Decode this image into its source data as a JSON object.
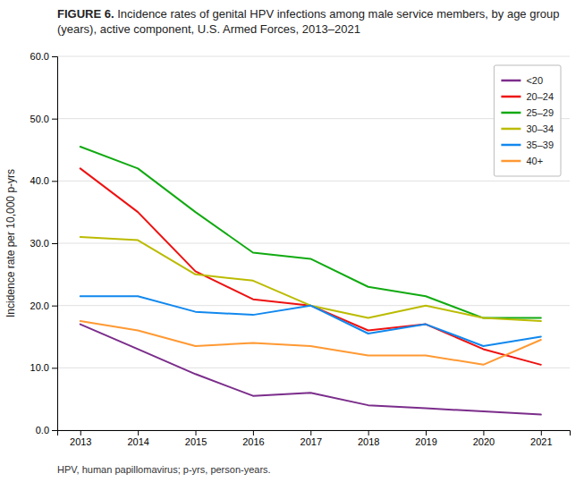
{
  "chart_data": {
    "type": "line",
    "title": "FIGURE 6.",
    "subtitle": "Incidence rates of genital HPV infections among male service members, by age group (years), active component, U.S. Armed Forces, 2013–2021",
    "y_label": "Incidence rate per 10,000 p-yrs",
    "annotations": [
      "HPV, human papillomavirus; p-yrs, person-years."
    ],
    "x": [
      2013,
      2014,
      2015,
      2016,
      2017,
      2018,
      2019,
      2020,
      2021
    ],
    "series": [
      {
        "name": "<20",
        "color": "#7B2D8B",
        "values": [
          17.0,
          13.0,
          9.0,
          5.5,
          6.0,
          4.0,
          3.5,
          3.0,
          2.5
        ]
      },
      {
        "name": "20–24",
        "color": "#EE1111",
        "values": [
          42.0,
          35.0,
          25.5,
          21.0,
          20.0,
          16.0,
          17.0,
          13.0,
          10.5
        ]
      },
      {
        "name": "25–29",
        "color": "#11AA11",
        "values": [
          45.5,
          42.0,
          35.0,
          28.5,
          27.5,
          23.0,
          21.5,
          18.0,
          18.0
        ]
      },
      {
        "name": "30–34",
        "color": "#BBBB00",
        "values": [
          31.0,
          30.5,
          25.0,
          24.0,
          20.0,
          18.0,
          20.0,
          18.0,
          17.5
        ]
      },
      {
        "name": "35–39",
        "color": "#1188EE",
        "values": [
          21.5,
          21.5,
          19.0,
          18.5,
          20.0,
          15.5,
          17.0,
          13.5,
          15.0
        ]
      },
      {
        "name": "40+",
        "color": "#FF9933",
        "values": [
          17.5,
          16.0,
          13.5,
          14.0,
          13.5,
          12.0,
          12.0,
          10.5,
          14.5
        ]
      }
    ],
    "xlim": [
      2012.6,
      2021.5
    ],
    "xticks": [
      2013,
      2014,
      2015,
      2016,
      2017,
      2018,
      2019,
      2020,
      2021
    ],
    "ylim": [
      0.0,
      60.0
    ],
    "yticks": [
      {
        "value": 0.0,
        "label": "0.0"
      },
      {
        "value": 10.0,
        "label": "10.0"
      },
      {
        "value": 20.0,
        "label": "20.0"
      },
      {
        "value": 30.0,
        "label": "30.0"
      },
      {
        "value": 40.0,
        "label": "40.0"
      },
      {
        "value": 50.0,
        "label": "50.0"
      },
      {
        "value": 60.0,
        "label": "60.0"
      }
    ],
    "grid": "y",
    "legend": "upper right"
  }
}
